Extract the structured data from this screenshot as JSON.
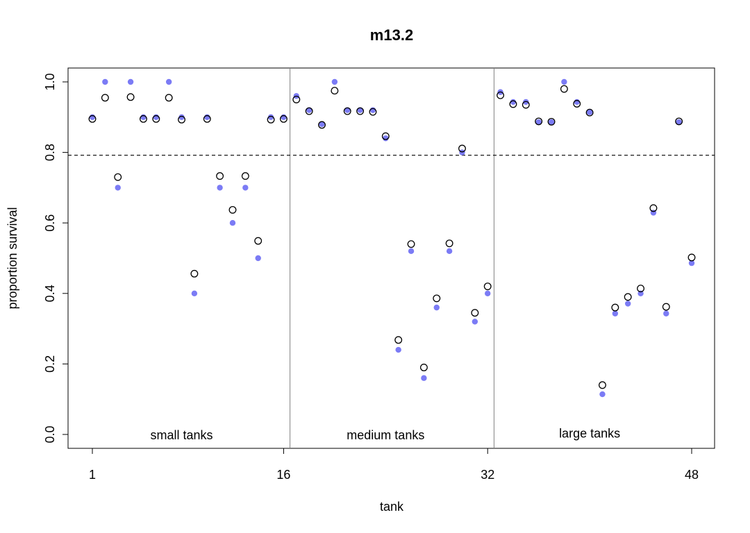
{
  "chart_data": {
    "type": "scatter",
    "title": "m13.2",
    "xlabel": "tank",
    "ylabel": "proportion survival",
    "xlim": [
      1,
      48
    ],
    "ylim": [
      0,
      1
    ],
    "x_ticks": [
      1,
      16,
      32,
      48
    ],
    "y_ticks": [
      "0.0",
      "0.2",
      "0.4",
      "0.6",
      "0.8",
      "1.0"
    ],
    "reference_line": 0.792,
    "dividers": [
      16.5,
      32.5
    ],
    "annotations": [
      {
        "text": "small tanks",
        "x": 8,
        "y": 0
      },
      {
        "text": "medium tanks",
        "x": 24,
        "y": 0
      },
      {
        "text": "large tanks",
        "x": 40,
        "y": 0.005
      }
    ],
    "colors": {
      "raw": "#7B7BF5",
      "estimate": "#000000",
      "reference": "#000000",
      "divider": "#808080"
    },
    "series": [
      {
        "style": "filled-blue",
        "x": [
          1,
          2,
          3,
          4,
          5,
          6,
          7,
          8,
          9,
          10,
          11,
          12,
          13,
          14,
          15,
          16,
          17,
          18,
          19,
          20,
          21,
          22,
          23,
          24,
          25,
          26,
          27,
          28,
          29,
          30,
          31,
          32,
          33,
          34,
          35,
          36,
          37,
          38,
          39,
          40,
          41,
          42,
          43,
          44,
          45,
          46,
          47,
          48
        ],
        "values": [
          0.9,
          1.0,
          0.7,
          1.0,
          0.9,
          0.9,
          1.0,
          0.9,
          0.4,
          0.9,
          0.7,
          0.6,
          0.7,
          0.5,
          0.9,
          0.9,
          0.96,
          0.92,
          0.88,
          1.0,
          0.92,
          0.92,
          0.92,
          0.84,
          0.24,
          0.52,
          0.16,
          0.36,
          0.52,
          0.8,
          0.32,
          0.4,
          0.971,
          0.943,
          0.943,
          0.886,
          0.886,
          1.0,
          0.943,
          0.914,
          0.114,
          0.343,
          0.371,
          0.4,
          0.629,
          0.343,
          0.886,
          0.486
        ]
      },
      {
        "style": "open-circle",
        "x": [
          1,
          2,
          3,
          4,
          5,
          6,
          7,
          8,
          9,
          10,
          11,
          12,
          13,
          14,
          15,
          16,
          17,
          18,
          19,
          20,
          21,
          22,
          23,
          24,
          25,
          26,
          27,
          28,
          29,
          30,
          31,
          32,
          33,
          34,
          35,
          36,
          37,
          38,
          39,
          40,
          41,
          42,
          43,
          44,
          45,
          46,
          47,
          48
        ],
        "values": [
          0.895,
          0.955,
          0.73,
          0.957,
          0.895,
          0.895,
          0.955,
          0.893,
          0.456,
          0.895,
          0.733,
          0.637,
          0.733,
          0.549,
          0.893,
          0.895,
          0.95,
          0.917,
          0.878,
          0.975,
          0.917,
          0.917,
          0.915,
          0.846,
          0.268,
          0.54,
          0.19,
          0.386,
          0.542,
          0.811,
          0.345,
          0.42,
          0.962,
          0.937,
          0.935,
          0.888,
          0.887,
          0.98,
          0.938,
          0.913,
          0.14,
          0.36,
          0.39,
          0.414,
          0.642,
          0.362,
          0.888,
          0.502
        ]
      }
    ]
  }
}
